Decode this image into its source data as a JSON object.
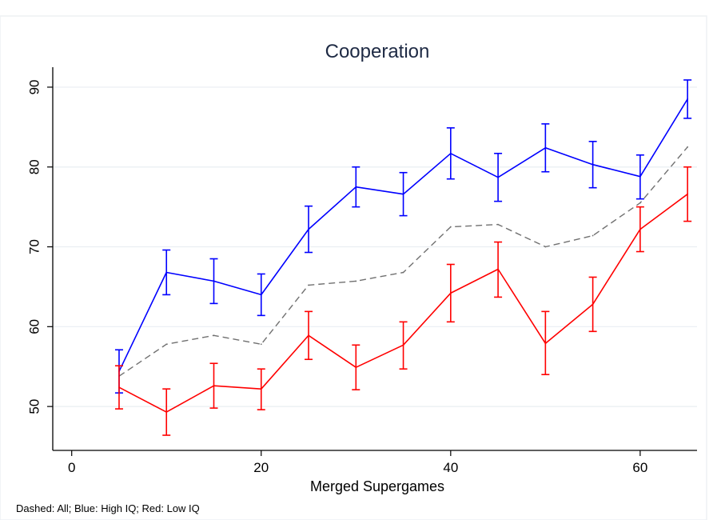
{
  "chart_data": {
    "type": "line",
    "title": "Cooperation",
    "xlabel": "Merged Supergames",
    "ylabel": "",
    "note": "Dashed: All; Blue: High IQ; Red: Low IQ",
    "xlim": [
      -2,
      66
    ],
    "ylim": [
      44.5,
      92.5
    ],
    "xticks": [
      0,
      20,
      40,
      60
    ],
    "yticks": [
      50,
      60,
      70,
      80,
      90
    ],
    "grid": true,
    "x": [
      5,
      10,
      15,
      20,
      25,
      30,
      35,
      40,
      45,
      50,
      55,
      60,
      65
    ],
    "series": [
      {
        "key": "all",
        "style": "dashed",
        "color": "#707070",
        "values": [
          53.8,
          57.8,
          58.9,
          57.8,
          65.2,
          65.7,
          66.8,
          72.5,
          72.8,
          70.0,
          71.4,
          75.5,
          82.5
        ]
      },
      {
        "key": "high",
        "style": "solid",
        "color": "#0000ff",
        "values": [
          54.4,
          66.8,
          65.7,
          64.0,
          72.2,
          77.5,
          76.6,
          81.7,
          78.7,
          82.4,
          80.3,
          78.8,
          88.5
        ],
        "lower": [
          51.7,
          64.0,
          62.9,
          61.4,
          69.3,
          75.0,
          73.9,
          78.5,
          75.7,
          79.4,
          77.4,
          76.0,
          86.1
        ],
        "upper": [
          57.1,
          69.6,
          68.5,
          66.6,
          75.1,
          80.0,
          79.3,
          84.9,
          81.7,
          85.4,
          83.2,
          81.5,
          90.9
        ]
      },
      {
        "key": "low",
        "style": "solid",
        "color": "#ff0000",
        "values": [
          52.4,
          49.3,
          52.6,
          52.2,
          58.9,
          54.9,
          57.7,
          64.2,
          67.2,
          57.9,
          62.8,
          72.2,
          76.6
        ],
        "lower": [
          49.7,
          46.4,
          49.8,
          49.6,
          55.9,
          52.1,
          54.7,
          60.6,
          63.7,
          54.0,
          59.4,
          69.4,
          73.2
        ],
        "upper": [
          55.1,
          52.2,
          55.4,
          54.7,
          61.9,
          57.7,
          60.6,
          67.8,
          70.6,
          61.9,
          66.2,
          75.0,
          80.0
        ]
      }
    ]
  }
}
